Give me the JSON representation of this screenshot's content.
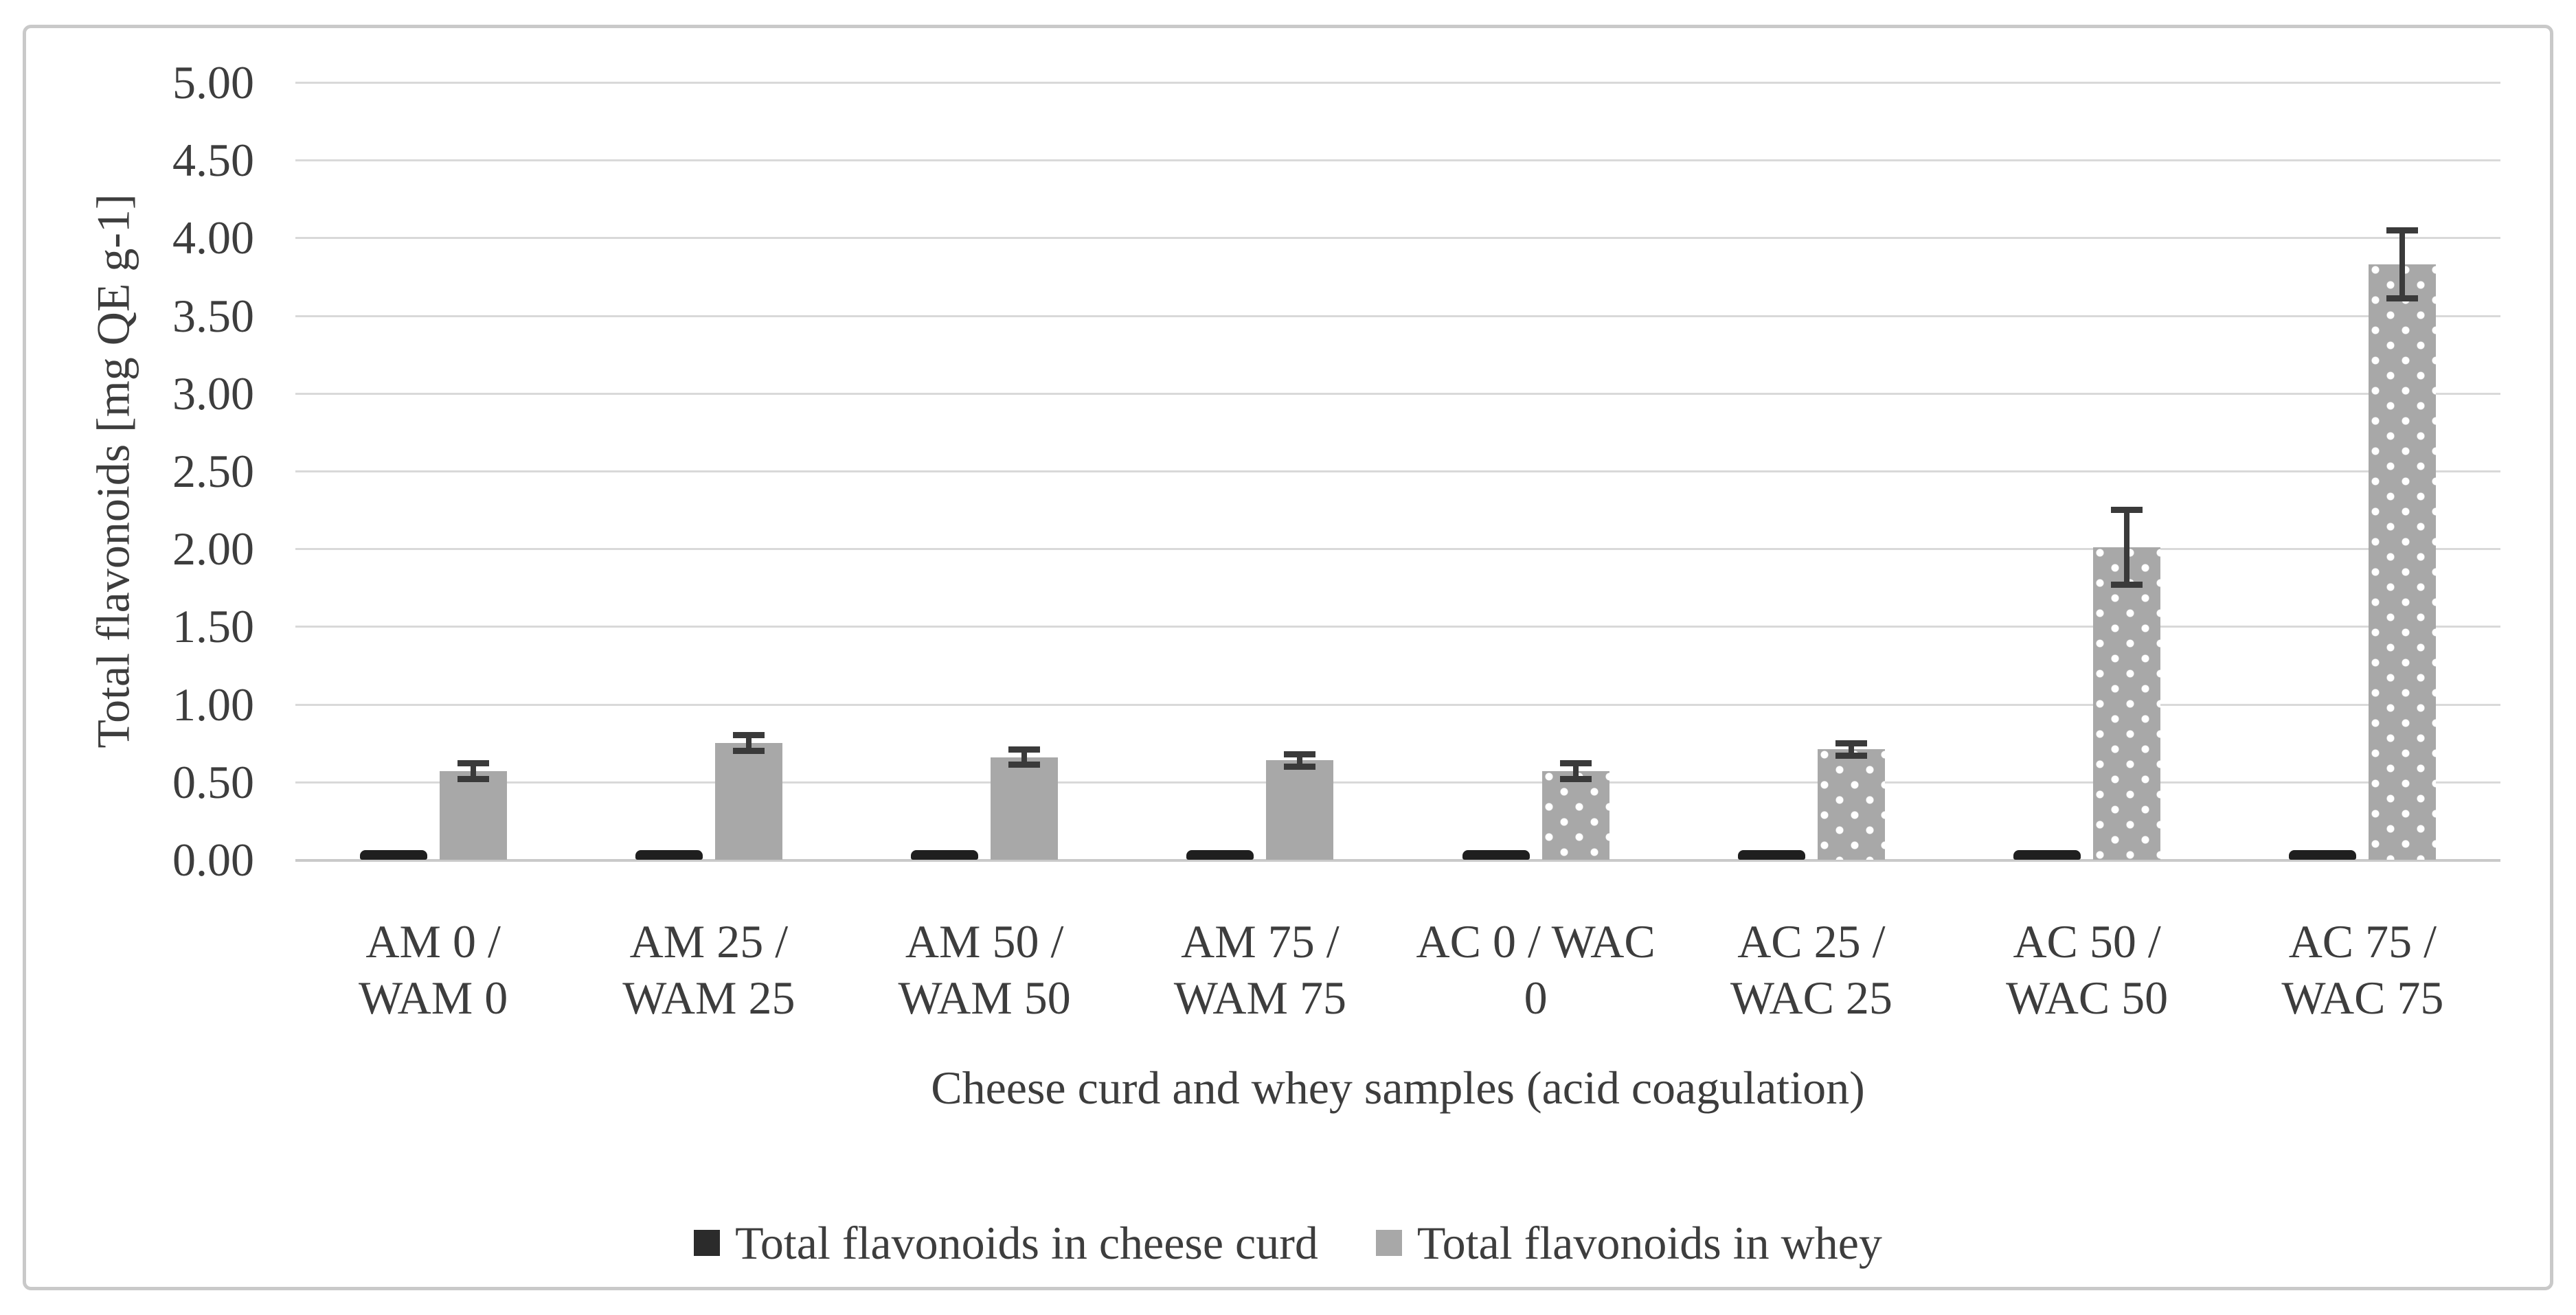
{
  "figure": {
    "border_color": "#c9c9c9",
    "background": "#ffffff",
    "text_color": "#3d3d3d",
    "gridline_color": "#d9d9d9"
  },
  "chart_data": {
    "type": "bar",
    "title": "",
    "xlabel": "Cheese curd and whey samples (acid coagulation)",
    "ylabel": "Total flavonoids [mg QE g-1]",
    "ylim": [
      0,
      5
    ],
    "ytick_step": 0.5,
    "ytick_labels": [
      "0.00",
      "0.50",
      "1.00",
      "1.50",
      "2.00",
      "2.50",
      "3.00",
      "3.50",
      "4.00",
      "4.50",
      "5.00"
    ],
    "grid": true,
    "legend_position": "bottom",
    "categories": [
      "AM 0 / WAM 0",
      "AM 25 / WAM 25",
      "AM 50 / WAM 50",
      "AM 75 / WAM 75",
      "AC 0 / WAC 0",
      "AC 25 / WAC 25",
      "AC 50 / WAC 50",
      "AC 75 / WAC 75"
    ],
    "category_label_lines": [
      [
        "AM 0 /",
        "WAM 0"
      ],
      [
        "AM 25 /",
        "WAM 25"
      ],
      [
        "AM 50 /",
        "WAM 50"
      ],
      [
        "AM 75 /",
        "WAM 75"
      ],
      [
        "AC 0 / WAC",
        "0"
      ],
      [
        "AC 25 /",
        "WAC 25"
      ],
      [
        "AC 50 /",
        "WAC 50"
      ],
      [
        "AC 75 /",
        "WAC 75"
      ]
    ],
    "series": [
      {
        "name": "Total flavonoids in cheese curd",
        "color": "#1f1f1f",
        "values": [
          0.05,
          0.04,
          0.03,
          0.03,
          0.03,
          0.04,
          0.03,
          0.04
        ]
      },
      {
        "name": "Total flavonoids in whey",
        "color": "#a8a8a8",
        "values": [
          0.57,
          0.75,
          0.66,
          0.64,
          0.57,
          0.71,
          2.01,
          3.83
        ],
        "errors": [
          0.07,
          0.07,
          0.07,
          0.06,
          0.07,
          0.06,
          0.26,
          0.24
        ],
        "patterns": [
          "solid",
          "solid",
          "solid",
          "solid",
          "dotted",
          "dotted",
          "dotted",
          "dotted"
        ]
      }
    ]
  }
}
